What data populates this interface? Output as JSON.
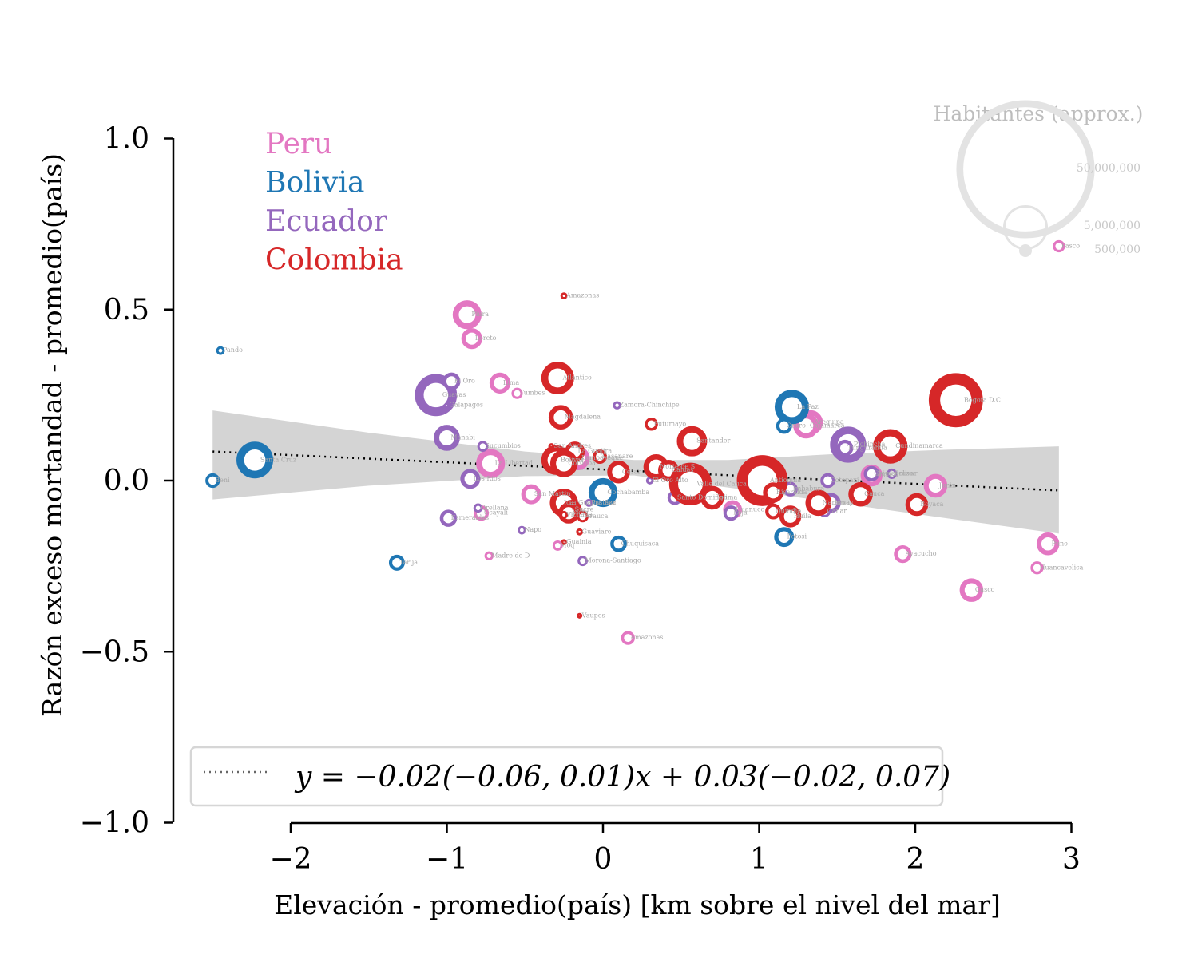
{
  "chart_data": {
    "type": "scatter",
    "xlabel": "Elevación - promedio(país) [km sobre el nivel del mar]",
    "ylabel": "Razón exceso mortandad - promedio(país)",
    "xlim": [
      -2.75,
      3.0
    ],
    "ylim": [
      -1.0,
      1.0
    ],
    "x_ticks": [
      -2,
      -1,
      0,
      1,
      2,
      3
    ],
    "x_tick_labels": [
      "−2",
      "−1",
      "0",
      "1",
      "2",
      "3"
    ],
    "y_ticks": [
      1.0,
      0.5,
      0.0,
      -0.5,
      -1.0
    ],
    "y_tick_labels": [
      "1.0",
      "0.5",
      "0.0",
      "−0.5",
      "−1.0"
    ],
    "grid": false,
    "countries": [
      {
        "name": "Peru",
        "color": "#e377c2"
      },
      {
        "name": "Bolivia",
        "color": "#1f77b4"
      },
      {
        "name": "Ecuador",
        "color": "#9467bd"
      },
      {
        "name": "Colombia",
        "color": "#d62728"
      }
    ],
    "size_legend": {
      "title": "Habitantes (approx.)",
      "entries": [
        {
          "label": "50,000,000",
          "population": 50000000
        },
        {
          "label": "5,000,000",
          "population": 5000000
        },
        {
          "label": "500,000",
          "population": 500000
        }
      ]
    },
    "fit": {
      "label": "y = −0.02(−0.06, 0.01)x + 0.03(−0.02, 0.07)",
      "slope": -0.021,
      "intercept": 0.0325,
      "x_range": [
        -2.5,
        2.92
      ],
      "band": [
        {
          "x": -2.5,
          "lo": -0.055,
          "hi": 0.205
        },
        {
          "x": -1.5,
          "lo": -0.015,
          "hi": 0.14
        },
        {
          "x": -0.5,
          "lo": 0.013,
          "hi": 0.085
        },
        {
          "x": 0.2,
          "lo": 0.015,
          "hi": 0.06
        },
        {
          "x": 0.8,
          "lo": -0.02,
          "hi": 0.06
        },
        {
          "x": 1.5,
          "lo": -0.065,
          "hi": 0.078
        },
        {
          "x": 2.2,
          "lo": -0.11,
          "hi": 0.09
        },
        {
          "x": 2.92,
          "lo": -0.155,
          "hi": 0.1
        }
      ]
    },
    "series": [
      {
        "name": "Peru",
        "points": [
          {
            "label": "Pasco",
            "x": 2.92,
            "y": 0.685,
            "pop": 300000
          },
          {
            "label": "Piura",
            "x": -0.87,
            "y": 0.485,
            "pop": 2000000
          },
          {
            "label": "Loreto",
            "x": -0.84,
            "y": 0.415,
            "pop": 1000000
          },
          {
            "label": "Lima",
            "x": -0.66,
            "y": 0.285,
            "pop": 1000000
          },
          {
            "label": "Tumbes",
            "x": -0.55,
            "y": 0.255,
            "pop": 250000
          },
          {
            "label": "Arequipa",
            "x": 1.33,
            "y": 0.17,
            "pop": 1400000
          },
          {
            "label": "Cajamarca",
            "x": 1.3,
            "y": 0.16,
            "pop": 1500000
          },
          {
            "label": "La Libertad",
            "x": -0.72,
            "y": 0.05,
            "pop": 2000000
          },
          {
            "label": "Lambayeque",
            "x": -0.16,
            "y": 0.065,
            "pop": 1300000
          },
          {
            "label": "Ancash",
            "x": 1.72,
            "y": 0.015,
            "pop": 1100000
          },
          {
            "label": "Junin",
            "x": 2.13,
            "y": -0.015,
            "pop": 1300000
          },
          {
            "label": "San Martin",
            "x": -0.46,
            "y": -0.04,
            "pop": 900000
          },
          {
            "label": "Ucayali",
            "x": -0.78,
            "y": -0.095,
            "pop": 500000
          },
          {
            "label": "Huanuco",
            "x": 0.83,
            "y": -0.085,
            "pop": 800000
          },
          {
            "label": "Ica",
            "x": -0.27,
            "y": -0.065,
            "pop": 850000
          },
          {
            "label": "Madre de D",
            "x": -0.73,
            "y": -0.22,
            "pop": 150000
          },
          {
            "label": "Moq",
            "x": -0.29,
            "y": -0.19,
            "pop": 200000
          },
          {
            "label": "Amazonas",
            "x": 0.16,
            "y": -0.46,
            "pop": 400000
          },
          {
            "label": "Puno",
            "x": 2.85,
            "y": -0.185,
            "pop": 1200000
          },
          {
            "label": "Ayacucho",
            "x": 1.92,
            "y": -0.215,
            "pop": 700000
          },
          {
            "label": "Huancavelica",
            "x": 2.78,
            "y": -0.255,
            "pop": 350000
          },
          {
            "label": "Cusco",
            "x": 2.36,
            "y": -0.32,
            "pop": 1300000
          }
        ]
      },
      {
        "name": "Bolivia",
        "points": [
          {
            "label": "Pando",
            "x": -2.45,
            "y": 0.38,
            "pop": 130000
          },
          {
            "label": "Beni",
            "x": -2.5,
            "y": 0.0,
            "pop": 450000
          },
          {
            "label": "Santa Cruz",
            "x": -2.23,
            "y": 0.06,
            "pop": 3300000
          },
          {
            "label": "Tarija",
            "x": -1.32,
            "y": -0.24,
            "pop": 550000
          },
          {
            "label": "La Paz",
            "x": 1.21,
            "y": 0.215,
            "pop": 2900000
          },
          {
            "label": "Oruro",
            "x": 1.16,
            "y": 0.16,
            "pop": 550000
          },
          {
            "label": "Cochabamba",
            "x": 0.0,
            "y": -0.035,
            "pop": 2000000
          },
          {
            "label": "Chuquisaca",
            "x": 0.1,
            "y": -0.185,
            "pop": 600000
          },
          {
            "label": "Potosi",
            "x": 1.16,
            "y": -0.165,
            "pop": 900000
          }
        ]
      },
      {
        "name": "Ecuador",
        "points": [
          {
            "label": "Guayas",
            "x": -1.07,
            "y": 0.25,
            "pop": 4400000
          },
          {
            "label": "El Oro",
            "x": -0.97,
            "y": 0.29,
            "pop": 700000
          },
          {
            "label": "Galapagos",
            "x": -1.0,
            "y": 0.22,
            "pop": 30000
          },
          {
            "label": "Manabi",
            "x": -1.0,
            "y": 0.125,
            "pop": 1600000
          },
          {
            "label": "Sucumbios",
            "x": -0.77,
            "y": 0.1,
            "pop": 230000
          },
          {
            "label": "Los Rios",
            "x": -0.85,
            "y": 0.005,
            "pop": 900000
          },
          {
            "label": "Orellana",
            "x": -0.8,
            "y": -0.08,
            "pop": 160000
          },
          {
            "label": "Esmeraldas",
            "x": -0.99,
            "y": -0.11,
            "pop": 650000
          },
          {
            "label": "Napo",
            "x": -0.52,
            "y": -0.145,
            "pop": 130000
          },
          {
            "label": "Pastaza",
            "x": -0.09,
            "y": -0.065,
            "pop": 110000
          },
          {
            "label": "Morona-Santiago",
            "x": -0.13,
            "y": -0.235,
            "pop": 200000
          },
          {
            "label": "Zamora-Chinchipe",
            "x": 0.09,
            "y": 0.22,
            "pop": 120000
          },
          {
            "label": "El Oro Alto",
            "x": 0.3,
            "y": 0.0,
            "pop": 100000
          },
          {
            "label": "Santo Domingo",
            "x": 0.46,
            "y": -0.05,
            "pop": 450000
          },
          {
            "label": "Loja",
            "x": 0.82,
            "y": -0.095,
            "pop": 500000
          },
          {
            "label": "Pichincha",
            "x": 1.57,
            "y": 0.105,
            "pop": 3200000
          },
          {
            "label": "Tungurahua",
            "x": 1.55,
            "y": 0.095,
            "pop": 600000
          },
          {
            "label": "Chimborazo",
            "x": 1.72,
            "y": 0.02,
            "pop": 520000
          },
          {
            "label": "Cotopaxi",
            "x": 1.44,
            "y": 0.0,
            "pop": 470000
          },
          {
            "label": "Imbabura",
            "x": 1.2,
            "y": -0.025,
            "pop": 460000
          },
          {
            "label": "Azuay",
            "x": 1.46,
            "y": -0.065,
            "pop": 880000
          },
          {
            "label": "Canar",
            "x": 1.42,
            "y": -0.09,
            "pop": 280000
          },
          {
            "label": "Bolivar",
            "x": 1.85,
            "y": 0.02,
            "pop": 210000
          }
        ]
      },
      {
        "name": "Colombia",
        "points": [
          {
            "label": "Amazonas",
            "x": -0.25,
            "y": 0.54,
            "pop": 80000
          },
          {
            "label": "Atlantico",
            "x": -0.29,
            "y": 0.3,
            "pop": 2600000
          },
          {
            "label": "Magdalena",
            "x": -0.27,
            "y": 0.185,
            "pop": 1400000
          },
          {
            "label": "Putumayo",
            "x": 0.31,
            "y": 0.165,
            "pop": 360000
          },
          {
            "label": "Bogota D.C",
            "x": 2.26,
            "y": 0.235,
            "pop": 7400000
          },
          {
            "label": "Santander",
            "x": 0.57,
            "y": 0.115,
            "pop": 2200000
          },
          {
            "label": "Cundinamarca",
            "x": 1.84,
            "y": 0.1,
            "pop": 2900000
          },
          {
            "label": "San Andres",
            "x": -0.33,
            "y": 0.1,
            "pop": 60000
          },
          {
            "label": "La Guajira",
            "x": -0.18,
            "y": 0.085,
            "pop": 900000
          },
          {
            "label": "Casanare",
            "x": -0.02,
            "y": 0.07,
            "pop": 430000
          },
          {
            "label": "Bolivar",
            "x": -0.3,
            "y": 0.06,
            "pop": 2100000
          },
          {
            "label": "Cordoba",
            "x": -0.25,
            "y": 0.05,
            "pop": 1800000
          },
          {
            "label": "Norte de S",
            "x": 0.34,
            "y": 0.04,
            "pop": 1500000
          },
          {
            "label": "Cesar",
            "x": 0.1,
            "y": 0.025,
            "pop": 1200000
          },
          {
            "label": "Caldas",
            "x": 0.42,
            "y": 0.03,
            "pop": 1000000
          },
          {
            "label": "Valle del Cauca",
            "x": 0.56,
            "y": -0.01,
            "pop": 4500000
          },
          {
            "label": "Antioquia",
            "x": 1.02,
            "y": 0.0,
            "pop": 6500000
          },
          {
            "label": "Risaralda",
            "x": 1.09,
            "y": -0.035,
            "pop": 950000
          },
          {
            "label": "Tolima",
            "x": 0.7,
            "y": -0.05,
            "pop": 1300000
          },
          {
            "label": "Quindio",
            "x": 1.09,
            "y": -0.09,
            "pop": 550000
          },
          {
            "label": "Huila",
            "x": 1.2,
            "y": -0.105,
            "pop": 1100000
          },
          {
            "label": "Nariño",
            "x": 1.38,
            "y": -0.065,
            "pop": 1600000
          },
          {
            "label": "Cauca",
            "x": 1.65,
            "y": -0.04,
            "pop": 1400000
          },
          {
            "label": "Boyaca",
            "x": 2.01,
            "y": -0.07,
            "pop": 1200000
          },
          {
            "label": "La Guajira Sur",
            "x": -0.25,
            "y": -0.065,
            "pop": 1900000
          },
          {
            "label": "Sucre",
            "x": -0.2,
            "y": -0.085,
            "pop": 900000
          },
          {
            "label": "Arauca",
            "x": -0.13,
            "y": -0.105,
            "pop": 270000
          },
          {
            "label": "Meta",
            "x": -0.22,
            "y": -0.095,
            "pop": 1000000
          },
          {
            "label": "Vichada",
            "x": -0.25,
            "y": -0.1,
            "pop": 110000
          },
          {
            "label": "Guaviare",
            "x": -0.15,
            "y": -0.15,
            "pop": 80000
          },
          {
            "label": "Guainia",
            "x": -0.25,
            "y": -0.18,
            "pop": 50000
          },
          {
            "label": "Vaupes",
            "x": -0.15,
            "y": -0.395,
            "pop": 45000
          }
        ]
      }
    ]
  }
}
